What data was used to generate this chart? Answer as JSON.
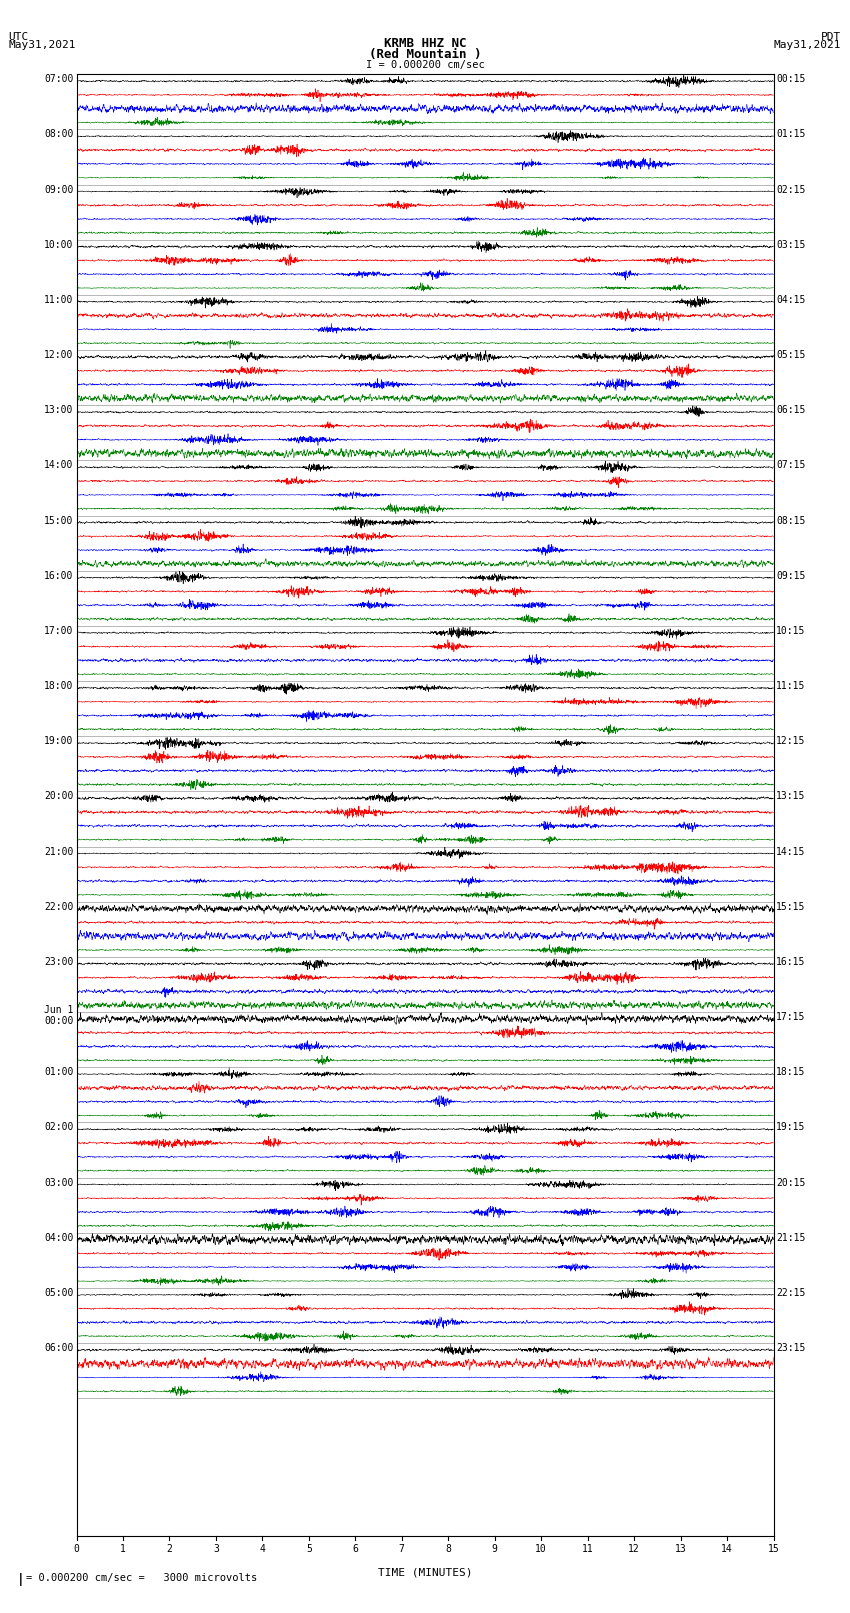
{
  "title_line1": "KRMB HHZ NC",
  "title_line2": "(Red Mountain )",
  "scale_label": "I = 0.000200 cm/sec",
  "left_date": "UTC\nMay31,2021",
  "right_date": "PDT\nMay31,2021",
  "bottom_label": "TIME (MINUTES)",
  "bottom_note": "= 0.000200 cm/sec =   3000 microvolts",
  "colors": [
    "black",
    "red",
    "blue",
    "green"
  ],
  "fig_width": 8.5,
  "fig_height": 16.13,
  "dpi": 100,
  "bg_color": "white",
  "n_rows": 96,
  "left_utc_times": [
    "07:00",
    "",
    "",
    "",
    "08:00",
    "",
    "",
    "",
    "09:00",
    "",
    "",
    "",
    "10:00",
    "",
    "",
    "",
    "11:00",
    "",
    "",
    "",
    "12:00",
    "",
    "",
    "",
    "13:00",
    "",
    "",
    "",
    "14:00",
    "",
    "",
    "",
    "15:00",
    "",
    "",
    "",
    "16:00",
    "",
    "",
    "",
    "17:00",
    "",
    "",
    "",
    "18:00",
    "",
    "",
    "",
    "19:00",
    "",
    "",
    "",
    "20:00",
    "",
    "",
    "",
    "21:00",
    "",
    "",
    "",
    "22:00",
    "",
    "",
    "",
    "23:00",
    "",
    "",
    "",
    "Jun 1\n00:00",
    "",
    "",
    "",
    "01:00",
    "",
    "",
    "",
    "02:00",
    "",
    "",
    "",
    "03:00",
    "",
    "",
    "",
    "04:00",
    "",
    "",
    "",
    "05:00",
    "",
    "",
    "",
    "06:00",
    "",
    "",
    ""
  ],
  "right_pdt_times": [
    "00:15",
    "",
    "",
    "",
    "01:15",
    "",
    "",
    "",
    "02:15",
    "",
    "",
    "",
    "03:15",
    "",
    "",
    "",
    "04:15",
    "",
    "",
    "",
    "05:15",
    "",
    "",
    "",
    "06:15",
    "",
    "",
    "",
    "07:15",
    "",
    "",
    "",
    "08:15",
    "",
    "",
    "",
    "09:15",
    "",
    "",
    "",
    "10:15",
    "",
    "",
    "",
    "11:15",
    "",
    "",
    "",
    "12:15",
    "",
    "",
    "",
    "13:15",
    "",
    "",
    "",
    "14:15",
    "",
    "",
    "",
    "15:15",
    "",
    "",
    "",
    "16:15",
    "",
    "",
    "",
    "17:15",
    "",
    "",
    "",
    "18:15",
    "",
    "",
    "",
    "19:15",
    "",
    "",
    "",
    "20:15",
    "",
    "",
    "",
    "21:15",
    "",
    "",
    "",
    "22:15",
    "",
    "",
    "",
    "23:15",
    "",
    "",
    ""
  ]
}
